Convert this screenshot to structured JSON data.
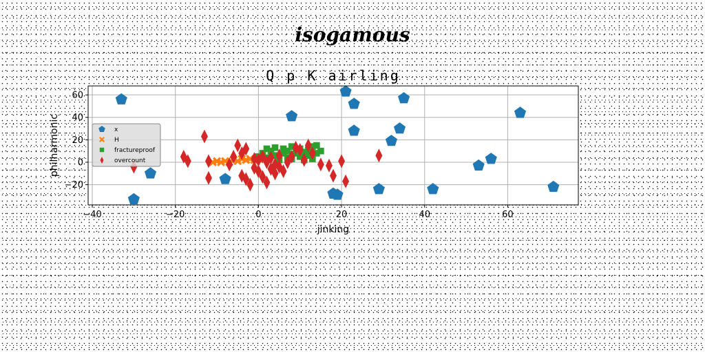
{
  "page": {
    "title": "isogamous"
  },
  "chart_data": {
    "type": "scatter",
    "title": "Q p K airling",
    "xlabel": "jinking",
    "ylabel": "philharmonic",
    "xlim": [
      -41,
      77
    ],
    "ylim": [
      -38,
      68
    ],
    "xticks": [
      -40,
      -20,
      0,
      20,
      40,
      60
    ],
    "yticks": [
      -20,
      0,
      20,
      40,
      60
    ],
    "grid": true,
    "legend_position": "center-left",
    "series": [
      {
        "name": "x",
        "marker": "pentagon",
        "color": "#1f77b4",
        "points": [
          [
            -33,
            56
          ],
          [
            -30,
            -33
          ],
          [
            -26,
            -10
          ],
          [
            -8,
            -15
          ],
          [
            8,
            41
          ],
          [
            18,
            -28
          ],
          [
            19,
            -29
          ],
          [
            21,
            63
          ],
          [
            23,
            52
          ],
          [
            23,
            28
          ],
          [
            29,
            -24
          ],
          [
            32,
            19
          ],
          [
            34,
            30
          ],
          [
            35,
            57
          ],
          [
            42,
            -24
          ],
          [
            53,
            -3
          ],
          [
            56,
            3
          ],
          [
            63,
            44
          ],
          [
            71,
            -22
          ]
        ]
      },
      {
        "name": "H",
        "marker": "x",
        "color": "#ff7f0e",
        "points": [
          [
            -11,
            0
          ],
          [
            -10,
            1
          ],
          [
            -9,
            0
          ],
          [
            -8,
            1
          ],
          [
            -7,
            0
          ],
          [
            -6,
            2
          ],
          [
            -5,
            1
          ],
          [
            -4,
            3
          ],
          [
            -3,
            2
          ],
          [
            -2,
            3
          ],
          [
            -1,
            2
          ],
          [
            0,
            3
          ]
        ]
      },
      {
        "name": "fractureproof",
        "marker": "square",
        "color": "#2ca02c",
        "points": [
          [
            0,
            5
          ],
          [
            1,
            8
          ],
          [
            2,
            12
          ],
          [
            2,
            4
          ],
          [
            3,
            10
          ],
          [
            4,
            13
          ],
          [
            4,
            6
          ],
          [
            5,
            2
          ],
          [
            6,
            12
          ],
          [
            6,
            8
          ],
          [
            7,
            4
          ],
          [
            7,
            10
          ],
          [
            8,
            14
          ],
          [
            8,
            3
          ],
          [
            9,
            8
          ],
          [
            10,
            12
          ],
          [
            10,
            5
          ],
          [
            11,
            9
          ],
          [
            11,
            2
          ],
          [
            12,
            11
          ],
          [
            12,
            6
          ],
          [
            13,
            14
          ],
          [
            13,
            3
          ],
          [
            14,
            8
          ],
          [
            14,
            15
          ],
          [
            15,
            10
          ]
        ]
      },
      {
        "name": "overcount",
        "marker": "thin_diamond",
        "color": "#d62728",
        "points": [
          [
            -30,
            -4
          ],
          [
            -18,
            5
          ],
          [
            -17,
            1
          ],
          [
            -13,
            23
          ],
          [
            -12,
            1
          ],
          [
            -12,
            -14
          ],
          [
            -7,
            -2
          ],
          [
            -6,
            5
          ],
          [
            -5,
            15
          ],
          [
            -4,
            8
          ],
          [
            -4,
            -12
          ],
          [
            -3,
            -15
          ],
          [
            -3,
            12
          ],
          [
            -2,
            -20
          ],
          [
            -1,
            3
          ],
          [
            -1,
            -5
          ],
          [
            0,
            2
          ],
          [
            0,
            -8
          ],
          [
            1,
            -13
          ],
          [
            1,
            5
          ],
          [
            2,
            -18
          ],
          [
            2,
            0
          ],
          [
            3,
            -6
          ],
          [
            3,
            4
          ],
          [
            4,
            -10
          ],
          [
            4,
            -2
          ],
          [
            5,
            6
          ],
          [
            5,
            -4
          ],
          [
            6,
            -8
          ],
          [
            7,
            0
          ],
          [
            8,
            5
          ],
          [
            9,
            13
          ],
          [
            10,
            11
          ],
          [
            11,
            2
          ],
          [
            12,
            15
          ],
          [
            13,
            8
          ],
          [
            15,
            -2
          ],
          [
            17,
            -3
          ],
          [
            18,
            -12
          ],
          [
            20,
            1
          ],
          [
            21,
            -17
          ],
          [
            29,
            6
          ]
        ]
      }
    ]
  }
}
